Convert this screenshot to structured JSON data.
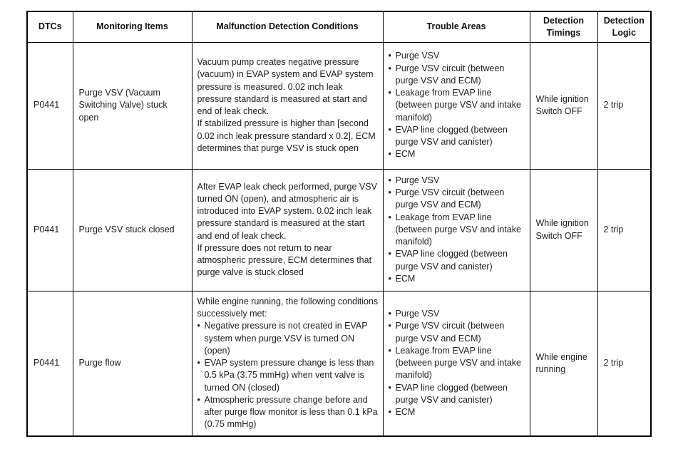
{
  "table": {
    "columns": [
      {
        "label": "DTCs"
      },
      {
        "label": "Monitoring Items"
      },
      {
        "label": "Malfunction Detection Conditions"
      },
      {
        "label": "Trouble Areas"
      },
      {
        "label": "Detection Timings"
      },
      {
        "label": "Detection Logic"
      }
    ],
    "rows": [
      {
        "dtc": "P0441",
        "monitoring_item": "Purge VSV (Vacuum Switching Valve) stuck open",
        "conditions": [
          {
            "style": "p",
            "text": "Vacuum pump creates negative pressure (vacuum) in EVAP system and EVAP system pressure is measured. 0.02 inch leak pressure standard is measured at start and end of leak check."
          },
          {
            "style": "p",
            "text": "If stabilized pressure is higher than [second 0.02 inch leak pressure standard x 0.2], ECM determines that purge VSV is stuck open"
          }
        ],
        "trouble_areas": [
          "Purge VSV",
          "Purge VSV circuit (between purge VSV and ECM)",
          "Leakage from EVAP line (between purge VSV and intake manifold)",
          "EVAP line clogged (between purge VSV and canister)",
          "ECM"
        ],
        "detection_timing": "While ignition Switch OFF",
        "detection_logic": "2 trip"
      },
      {
        "dtc": "P0441",
        "monitoring_item": "Purge VSV stuck closed",
        "conditions": [
          {
            "style": "p",
            "text": "After EVAP leak check performed, purge VSV turned ON (open), and atmospheric air is introduced into EVAP system. 0.02 inch leak pressure standard is measured at the start and end of leak check."
          },
          {
            "style": "p",
            "text": "If pressure does not return to near atmospheric pressure, ECM determines that purge valve is stuck closed"
          }
        ],
        "trouble_areas": [
          "Purge VSV",
          "Purge VSV circuit (between purge VSV and ECM)",
          "Leakage from EVAP line (between purge VSV and intake manifold)",
          "EVAP line clogged (between purge VSV and canister)",
          "ECM"
        ],
        "detection_timing": "While ignition Switch OFF",
        "detection_logic": "2 trip"
      },
      {
        "dtc": "P0441",
        "monitoring_item": "Purge flow",
        "conditions": [
          {
            "style": "p",
            "text": "While engine running, the following conditions successively met:"
          },
          {
            "style": "bullet",
            "text": "Negative pressure is not created in EVAP system when purge VSV is turned ON (open)"
          },
          {
            "style": "bullet",
            "text": "EVAP system pressure change is less than 0.5 kPa (3.75 mmHg) when vent valve is turned ON (closed)"
          },
          {
            "style": "bullet",
            "text": "Atmospheric pressure change before and after purge flow monitor is less than 0.1 kPa (0.75 mmHg)"
          }
        ],
        "trouble_areas": [
          "Purge VSV",
          "Purge VSV circuit (between purge VSV and ECM)",
          "Leakage from EVAP line (between purge VSV and intake manifold)",
          "EVAP line clogged (between purge VSV and canister)",
          "ECM"
        ],
        "detection_timing": "While engine running",
        "detection_logic": "2 trip"
      }
    ]
  }
}
